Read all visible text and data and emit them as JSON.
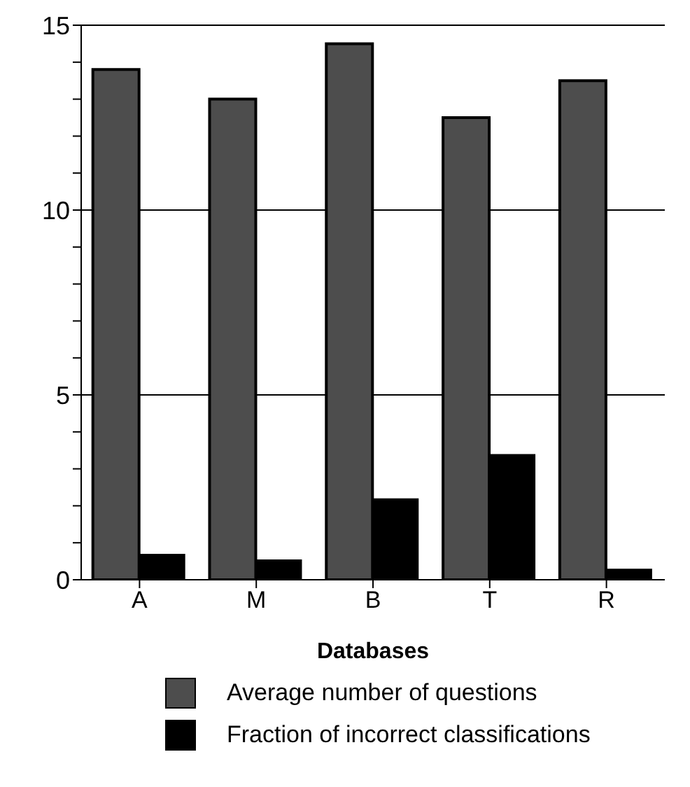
{
  "chart_data": {
    "type": "bar",
    "xlabel": "Databases",
    "categories": [
      "A",
      "M",
      "B",
      "T",
      "R"
    ],
    "series": [
      {
        "name": "Average number of questions",
        "color": "#4d4d4d",
        "values": [
          13.8,
          13.0,
          14.5,
          12.5,
          13.5
        ]
      },
      {
        "name": "Fraction of incorrect classifications",
        "color": "#000000",
        "values": [
          0.7,
          0.55,
          2.2,
          3.4,
          0.3
        ]
      }
    ],
    "ylim": [
      0,
      15
    ],
    "yticks": [
      0,
      {
        "value": 1,
        "label": null
      },
      {
        "value": 2,
        "label": null
      },
      {
        "value": 3,
        "label": null
      },
      {
        "value": 4,
        "label": null
      },
      5,
      {
        "value": 6,
        "label": null
      },
      {
        "value": 7,
        "label": null
      },
      {
        "value": 8,
        "label": null
      },
      {
        "value": 9,
        "label": null
      },
      10,
      {
        "value": 11,
        "label": null
      },
      {
        "value": 12,
        "label": null
      },
      {
        "value": 13,
        "label": null
      },
      {
        "value": 14,
        "label": null
      },
      15
    ],
    "grid": "y",
    "legend": "bottom"
  }
}
